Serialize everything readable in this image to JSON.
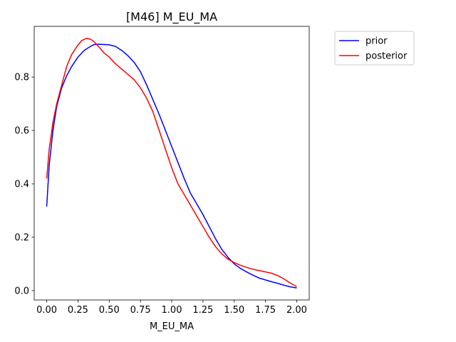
{
  "chart_data": {
    "type": "line",
    "title": "[M46] M_EU_MA",
    "xlabel": "M_EU_MA",
    "ylabel": "",
    "xlim": [
      -0.1,
      2.1
    ],
    "ylim": [
      -0.035,
      0.99
    ],
    "xticks": [
      0.0,
      0.25,
      0.5,
      0.75,
      1.0,
      1.25,
      1.5,
      1.75,
      2.0
    ],
    "xtick_labels": [
      "0.00",
      "0.25",
      "0.50",
      "0.75",
      "1.00",
      "1.25",
      "1.50",
      "1.75",
      "2.00"
    ],
    "yticks": [
      0.0,
      0.2,
      0.4,
      0.6,
      0.8
    ],
    "ytick_labels": [
      "0.0",
      "0.2",
      "0.4",
      "0.6",
      "0.8"
    ],
    "grid": false,
    "legend_position": "outside-top-right",
    "series": [
      {
        "name": "prior",
        "color": "#0000ff",
        "x": [
          0.0,
          0.02,
          0.05,
          0.08,
          0.12,
          0.16,
          0.2,
          0.25,
          0.3,
          0.35,
          0.38,
          0.42,
          0.46,
          0.5,
          0.55,
          0.6,
          0.65,
          0.7,
          0.75,
          0.8,
          0.85,
          0.9,
          0.95,
          1.0,
          1.05,
          1.1,
          1.15,
          1.2,
          1.25,
          1.3,
          1.35,
          1.4,
          1.45,
          1.5,
          1.55,
          1.6,
          1.65,
          1.7,
          1.75,
          1.8,
          1.85,
          1.9,
          1.95,
          2.0
        ],
        "y": [
          0.315,
          0.47,
          0.6,
          0.69,
          0.76,
          0.805,
          0.84,
          0.875,
          0.9,
          0.915,
          0.922,
          0.923,
          0.922,
          0.921,
          0.915,
          0.9,
          0.88,
          0.855,
          0.82,
          0.77,
          0.715,
          0.66,
          0.6,
          0.54,
          0.48,
          0.42,
          0.365,
          0.325,
          0.285,
          0.24,
          0.195,
          0.155,
          0.125,
          0.1,
          0.083,
          0.07,
          0.058,
          0.047,
          0.04,
          0.033,
          0.027,
          0.02,
          0.014,
          0.01
        ]
      },
      {
        "name": "posterior",
        "color": "#ff0000",
        "x": [
          0.0,
          0.02,
          0.05,
          0.08,
          0.12,
          0.16,
          0.2,
          0.25,
          0.28,
          0.32,
          0.35,
          0.38,
          0.42,
          0.46,
          0.5,
          0.55,
          0.6,
          0.65,
          0.7,
          0.75,
          0.8,
          0.85,
          0.9,
          0.95,
          1.0,
          1.05,
          1.1,
          1.15,
          1.2,
          1.25,
          1.3,
          1.35,
          1.4,
          1.45,
          1.5,
          1.55,
          1.6,
          1.65,
          1.7,
          1.75,
          1.8,
          1.85,
          1.9,
          1.95,
          2.0
        ],
        "y": [
          0.42,
          0.53,
          0.63,
          0.7,
          0.77,
          0.84,
          0.885,
          0.92,
          0.937,
          0.945,
          0.942,
          0.932,
          0.912,
          0.89,
          0.875,
          0.85,
          0.83,
          0.81,
          0.79,
          0.76,
          0.72,
          0.67,
          0.6,
          0.53,
          0.46,
          0.4,
          0.36,
          0.32,
          0.28,
          0.24,
          0.2,
          0.165,
          0.138,
          0.118,
          0.105,
          0.095,
          0.087,
          0.08,
          0.075,
          0.07,
          0.065,
          0.056,
          0.043,
          0.028,
          0.015
        ]
      }
    ]
  }
}
